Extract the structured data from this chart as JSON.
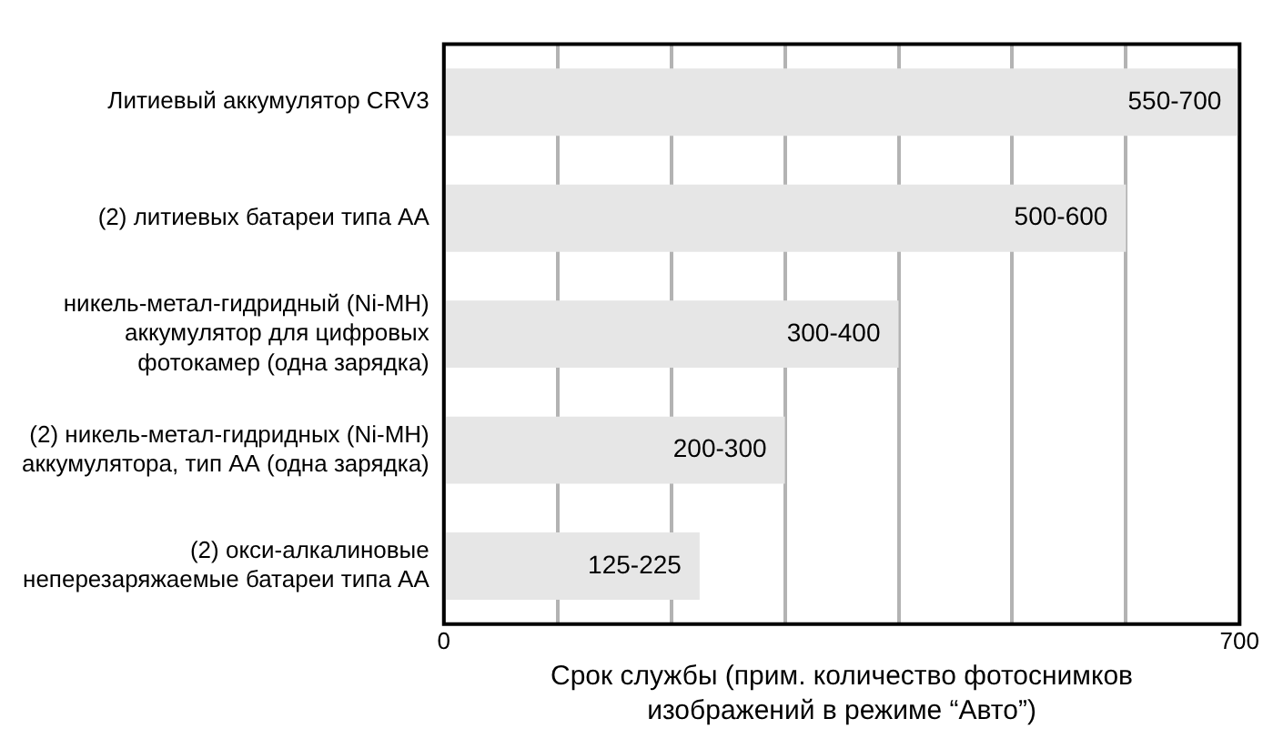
{
  "chart_data": {
    "type": "bar",
    "orientation": "horizontal",
    "categories": [
      "Литиевый аккумулятор CRV3",
      "(2) литиевых батареи типа АА",
      "никель-метал-гидридный (Ni-MH)\nаккумулятор для цифровых\nфотокамер (одна зарядка)",
      "(2) никель-метал-гидридных (Ni-MH)\nаккумулятора, тип АА (одна зарядка)",
      "(2) окси-алкалиновые\nнеперезаряжаемые батареи типа АА"
    ],
    "values": [
      700,
      600,
      400,
      300,
      225
    ],
    "value_labels": [
      "550-700",
      "500-600",
      "300-400",
      "200-300",
      "125-225"
    ],
    "color": "#e6e6e6",
    "xlim": [
      0,
      700
    ],
    "xticks": [
      0,
      {
        "value": 100,
        "label": null
      },
      {
        "value": 200,
        "label": null
      },
      {
        "value": 300,
        "label": null
      },
      {
        "value": 400,
        "label": null
      },
      {
        "value": 500,
        "label": null
      },
      {
        "value": 600,
        "label": null
      },
      700
    ],
    "xlabel": "Срок службы (прим. количество фотоснимков\nизображений в режиме “Авто”)",
    "grid": "x",
    "legend": false
  }
}
